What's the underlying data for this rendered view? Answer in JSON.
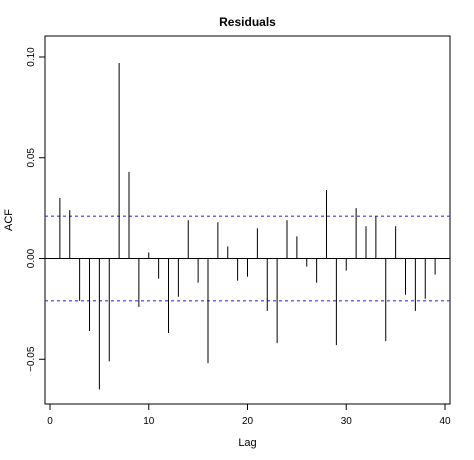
{
  "chart_data": {
    "type": "bar",
    "title": "Residuals",
    "xlabel": "Lag",
    "ylabel": "ACF",
    "xlim": [
      0,
      40
    ],
    "ylim": [
      -0.07,
      0.105
    ],
    "x_ticks": [
      0,
      10,
      20,
      30,
      40
    ],
    "x_tick_labels": [
      "0",
      "10",
      "20",
      "30",
      "40"
    ],
    "y_ticks": [
      -0.05,
      0,
      0.05,
      0.1
    ],
    "y_tick_labels": [
      "−0.05",
      "0.00",
      "0.05",
      "0.10"
    ],
    "confidence_bound": 0.021,
    "bound_color": "#3a3ad0",
    "lags": [
      1,
      2,
      3,
      4,
      5,
      6,
      7,
      8,
      9,
      10,
      11,
      12,
      13,
      14,
      15,
      16,
      17,
      18,
      19,
      20,
      21,
      22,
      23,
      24,
      25,
      26,
      27,
      28,
      29,
      30,
      31,
      32,
      33,
      34,
      35,
      36,
      37,
      38,
      39
    ],
    "values": [
      0.03,
      0.024,
      -0.021,
      -0.036,
      -0.065,
      -0.051,
      0.097,
      0.043,
      -0.024,
      0.003,
      -0.01,
      -0.037,
      -0.019,
      0.019,
      -0.012,
      -0.052,
      0.018,
      0.006,
      -0.011,
      -0.009,
      0.015,
      -0.026,
      -0.042,
      0.019,
      0.011,
      -0.004,
      -0.012,
      0.034,
      -0.043,
      -0.006,
      0.025,
      0.016,
      0.021,
      -0.041,
      0.016,
      -0.018,
      -0.026,
      -0.02,
      -0.008
    ],
    "grid": false
  }
}
